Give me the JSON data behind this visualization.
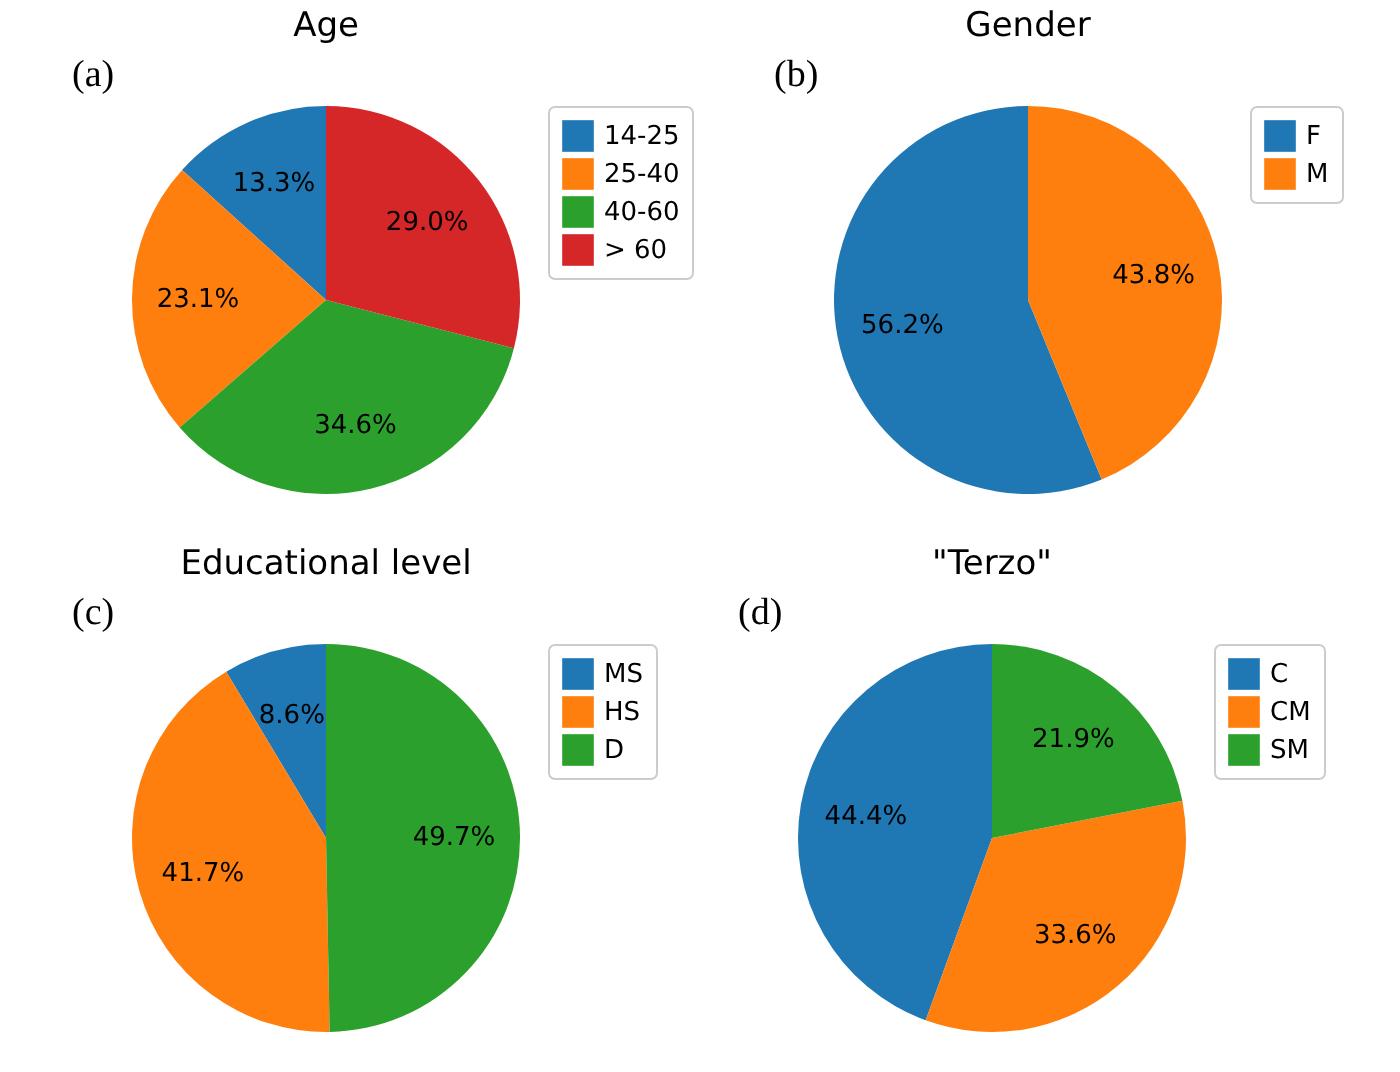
{
  "chart_data": [
    {
      "type": "pie",
      "title": "Age",
      "annotations": [
        "(a)"
      ],
      "categories": [
        "14-25",
        "25-40",
        "40-60",
        "> 60"
      ],
      "values": [
        13.3,
        23.1,
        34.6,
        29.0
      ],
      "value_labels": [
        "13.3%",
        "23.1%",
        "34.6%",
        "29.0%"
      ],
      "colors": [
        "#1f77b4",
        "#ff7f0e",
        "#2ca02c",
        "#d62728"
      ],
      "legend": "right"
    },
    {
      "type": "pie",
      "title": "Gender",
      "annotations": [
        "(b)"
      ],
      "categories": [
        "F",
        "M"
      ],
      "values": [
        56.2,
        43.8
      ],
      "value_labels": [
        "56.2%",
        "43.8%"
      ],
      "colors": [
        "#1f77b4",
        "#ff7f0e"
      ],
      "legend": "right"
    },
    {
      "type": "pie",
      "title": "Educational level",
      "annotations": [
        "(c)"
      ],
      "categories": [
        "MS",
        "HS",
        "D"
      ],
      "values": [
        8.6,
        41.7,
        49.7
      ],
      "value_labels": [
        "8.6%",
        "41.7%",
        "49.7%"
      ],
      "colors": [
        "#1f77b4",
        "#ff7f0e",
        "#2ca02c"
      ],
      "legend": "right"
    },
    {
      "type": "pie",
      "title": "\"Terzo\"",
      "annotations": [
        "(d)"
      ],
      "categories": [
        "C",
        "CM",
        "SM"
      ],
      "values": [
        44.4,
        33.6,
        21.9
      ],
      "value_labels": [
        "44.4%",
        "33.6%",
        "21.9%"
      ],
      "colors": [
        "#1f77b4",
        "#ff7f0e",
        "#2ca02c"
      ],
      "legend": "right"
    }
  ]
}
